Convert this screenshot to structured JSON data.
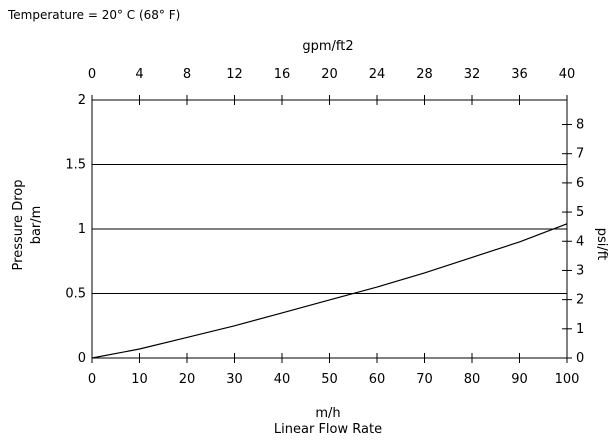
{
  "chart_data": {
    "type": "line",
    "note": "Temperature = 20° C (68° F)",
    "title": "",
    "xlabel_bottom": "m/h",
    "xlabel_bottom_sub": "Linear Flow Rate",
    "xlabel_top": "gpm/ft2",
    "ylabel_left": "Pressure Drop",
    "ylabel_left_sub": "bar/m",
    "ylabel_right": "psi/ft",
    "x_bottom": {
      "min": 0,
      "max": 100,
      "ticks": [
        0,
        10,
        20,
        30,
        40,
        50,
        60,
        70,
        80,
        90,
        100
      ]
    },
    "x_top": {
      "min": 0,
      "max": 40,
      "ticks": [
        0,
        4,
        8,
        12,
        16,
        20,
        24,
        28,
        32,
        36,
        40
      ]
    },
    "y_left": {
      "min": 0,
      "max": 2,
      "ticks": [
        "0",
        "0.5",
        "1",
        "1.5",
        "2"
      ]
    },
    "y_right": {
      "min": 0,
      "max": 8.84,
      "ticks": [
        0,
        1,
        2,
        3,
        4,
        5,
        6,
        7,
        8
      ]
    },
    "grid": "horizontal",
    "series": [
      {
        "x": [
          0,
          10,
          20,
          30,
          40,
          50,
          60,
          70,
          80,
          90,
          100
        ],
        "y": [
          0,
          0.07,
          0.16,
          0.25,
          0.35,
          0.45,
          0.55,
          0.66,
          0.78,
          0.9,
          1.04
        ]
      }
    ]
  }
}
